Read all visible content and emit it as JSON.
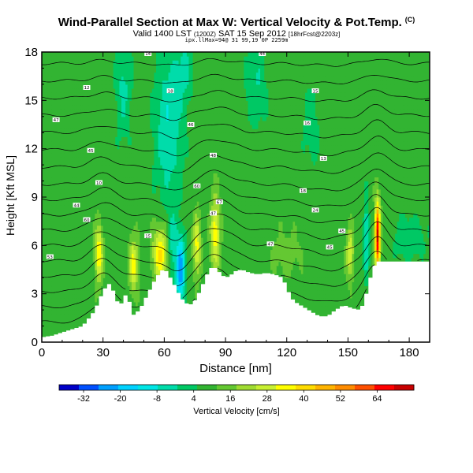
{
  "header": {
    "title": "Wind-Parallel Section at Max W: Vertical Velocity & Pot.Temp.",
    "title_mark": "(C)",
    "valid_line": "Valid 1400 LST",
    "valid_small": "(1200Z)",
    "valid_date": "SAT 15 Sep 2012",
    "valid_fcst": "[18hrFcst@2203z]",
    "coords_line": "ipx.llMax=94@ 31 99,19 0P 2259m"
  },
  "chart_data": {
    "type": "heatmap",
    "xlabel": "Distance [nm]",
    "ylabel": "Height [Kft MSL]",
    "xlim": [
      0,
      190
    ],
    "ylim": [
      0,
      18
    ],
    "x_ticks": [
      0,
      30,
      60,
      90,
      120,
      150,
      180
    ],
    "y_ticks": [
      0,
      3,
      6,
      9,
      12,
      15,
      18
    ],
    "colorbar": {
      "label": "Vertical Velocity [cm/s]",
      "range": [
        -40,
        76
      ],
      "tick_values": [
        -32,
        -20,
        -8,
        4,
        16,
        28,
        40,
        52,
        64
      ],
      "colors": [
        "#0000c8",
        "#0050ff",
        "#00a0ff",
        "#00d2ff",
        "#00e6e6",
        "#00dcaa",
        "#00c864",
        "#32b432",
        "#64c832",
        "#a0dc32",
        "#c8f032",
        "#ffff00",
        "#ffdc00",
        "#ffb400",
        "#ff8c00",
        "#ff5000",
        "#ff0000",
        "#c80000"
      ]
    },
    "terrain_kft": [
      [
        0,
        0.3
      ],
      [
        5,
        0.4
      ],
      [
        10,
        0.6
      ],
      [
        15,
        0.8
      ],
      [
        20,
        1.0
      ],
      [
        22,
        1.3
      ],
      [
        25,
        1.8
      ],
      [
        28,
        2.5
      ],
      [
        30,
        3.2
      ],
      [
        33,
        3.6
      ],
      [
        35,
        3.2
      ],
      [
        38,
        2.2
      ],
      [
        40,
        2.6
      ],
      [
        42,
        3.2
      ],
      [
        43,
        2.5
      ],
      [
        45,
        1.7
      ],
      [
        48,
        2.0
      ],
      [
        50,
        2.5
      ],
      [
        52,
        3.0
      ],
      [
        54,
        3.5
      ],
      [
        56,
        4.0
      ],
      [
        58,
        4.3
      ],
      [
        60,
        4.6
      ],
      [
        62,
        4.2
      ],
      [
        64,
        3.8
      ],
      [
        66,
        3.3
      ],
      [
        68,
        2.8
      ],
      [
        70,
        2.5
      ],
      [
        72,
        2.3
      ],
      [
        74,
        2.4
      ],
      [
        76,
        2.8
      ],
      [
        78,
        3.3
      ],
      [
        80,
        3.9
      ],
      [
        82,
        4.5
      ],
      [
        84,
        4.7
      ],
      [
        86,
        4.5
      ],
      [
        88,
        4.2
      ],
      [
        90,
        4.0
      ],
      [
        92,
        4.1
      ],
      [
        95,
        4.4
      ],
      [
        98,
        4.5
      ],
      [
        102,
        4.3
      ],
      [
        106,
        4.2
      ],
      [
        110,
        4.3
      ],
      [
        114,
        4.2
      ],
      [
        118,
        4.0
      ],
      [
        120,
        3.4
      ],
      [
        122,
        2.8
      ],
      [
        124,
        2.5
      ],
      [
        128,
        2.2
      ],
      [
        132,
        1.9
      ],
      [
        136,
        1.6
      ],
      [
        140,
        1.6
      ],
      [
        144,
        2.0
      ],
      [
        148,
        2.3
      ],
      [
        152,
        2.1
      ],
      [
        156,
        2.0
      ],
      [
        158,
        2.5
      ],
      [
        160,
        3.5
      ],
      [
        162,
        4.5
      ],
      [
        164,
        5.0
      ],
      [
        168,
        5.0
      ],
      [
        175,
        5.0
      ],
      [
        183,
        5.0
      ],
      [
        190,
        5.0
      ]
    ],
    "contour_levels_visible": 19,
    "contour_labels": [
      {
        "x": 52,
        "y": 17.9,
        "text": "14"
      },
      {
        "x": 108,
        "y": 17.9,
        "text": "44"
      },
      {
        "x": 22,
        "y": 15.8,
        "text": "12"
      },
      {
        "x": 63,
        "y": 15.6,
        "text": "18"
      },
      {
        "x": 134,
        "y": 15.6,
        "text": "15"
      },
      {
        "x": 7,
        "y": 13.8,
        "text": "47"
      },
      {
        "x": 73,
        "y": 13.5,
        "text": "46"
      },
      {
        "x": 130,
        "y": 13.6,
        "text": "16"
      },
      {
        "x": 24,
        "y": 11.9,
        "text": "45"
      },
      {
        "x": 84,
        "y": 11.6,
        "text": "48"
      },
      {
        "x": 138,
        "y": 11.4,
        "text": "13"
      },
      {
        "x": 28,
        "y": 9.9,
        "text": "10"
      },
      {
        "x": 76,
        "y": 9.7,
        "text": "60"
      },
      {
        "x": 128,
        "y": 9.4,
        "text": "18"
      },
      {
        "x": 17,
        "y": 8.5,
        "text": "44"
      },
      {
        "x": 87,
        "y": 8.7,
        "text": "67"
      },
      {
        "x": 84,
        "y": 8.0,
        "text": "47"
      },
      {
        "x": 134,
        "y": 8.2,
        "text": "24"
      },
      {
        "x": 22,
        "y": 7.6,
        "text": "60"
      },
      {
        "x": 52,
        "y": 6.6,
        "text": "15"
      },
      {
        "x": 147,
        "y": 6.9,
        "text": "45"
      },
      {
        "x": 112,
        "y": 6.1,
        "text": "47"
      },
      {
        "x": 141,
        "y": 5.9,
        "text": "45"
      },
      {
        "x": 4,
        "y": 5.3,
        "text": "53"
      }
    ]
  }
}
